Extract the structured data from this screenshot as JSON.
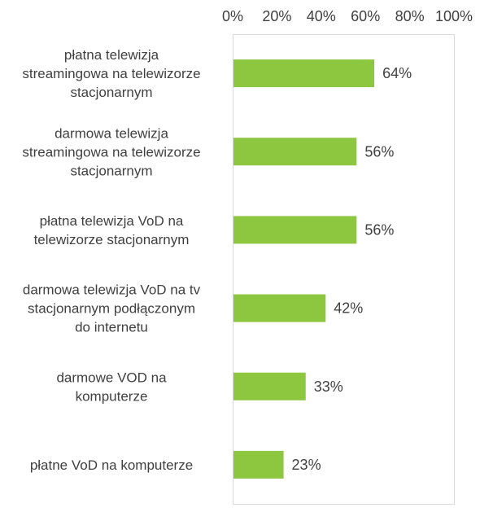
{
  "chart_data": {
    "type": "bar",
    "orientation": "horizontal",
    "title": "",
    "xlabel": "",
    "ylabel": "",
    "xlim": [
      0,
      100
    ],
    "tick_labels": [
      "0%",
      "20%",
      "40%",
      "60%",
      "80%",
      "100%"
    ],
    "tick_values": [
      0,
      20,
      40,
      60,
      80,
      100
    ],
    "grid": false,
    "legend": "none",
    "bar_color": "#8DC63F",
    "categories": [
      [
        "płatna telewizja",
        "streamingowa na telewizorze",
        "stacjonarnym"
      ],
      [
        "darmowa telewizja",
        "streamingowa na telewizorze",
        "stacjonarnym"
      ],
      [
        "płatna telewizja VoD na",
        "telewizorze stacjonarnym"
      ],
      [
        "darmowa telewizja VoD na tv",
        "stacjonarnym podłączonym",
        "do internetu"
      ],
      [
        "darmowe VOD na",
        "komputerze"
      ],
      [
        "płatne VoD na komputerze"
      ]
    ],
    "values": [
      64,
      56,
      56,
      42,
      33,
      23
    ],
    "value_labels": [
      "64%",
      "56%",
      "56%",
      "42%",
      "33%",
      "23%"
    ]
  }
}
